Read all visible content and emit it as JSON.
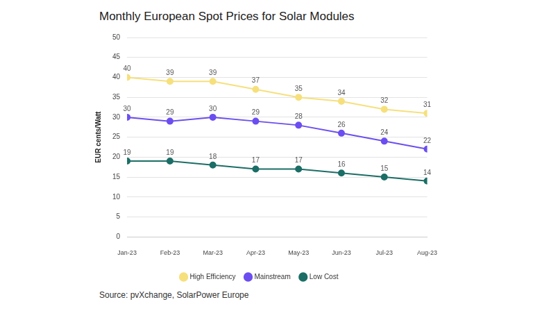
{
  "chart_data": {
    "type": "line",
    "title": "Monthly European Spot Prices for Solar Modules",
    "y_label": "EUR cents/Watt",
    "source": "Source: pvXchange, SolarPower Europe",
    "categories": [
      "Jan-23",
      "Feb-23",
      "Mar-23",
      "Apr-23",
      "May-23",
      "Jun-23",
      "Jul-23",
      "Aug-23"
    ],
    "series": [
      {
        "name": "High Efficiency",
        "color": "#f6e07c",
        "values": [
          40,
          39,
          39,
          37,
          35,
          34,
          32,
          31
        ]
      },
      {
        "name": "Mainstream",
        "color": "#6c4ef0",
        "values": [
          30,
          29,
          30,
          29,
          28,
          26,
          24,
          22
        ]
      },
      {
        "name": "Low Cost",
        "color": "#1b6e66",
        "values": [
          19,
          19,
          18,
          17,
          17,
          16,
          15,
          14
        ]
      }
    ],
    "ylim": [
      0,
      50
    ],
    "yticks": [
      0,
      5,
      10,
      15,
      20,
      25,
      30,
      35,
      40,
      45,
      50
    ],
    "grid": true,
    "legend": "bottom",
    "data_labels": true,
    "marker": "circle"
  }
}
